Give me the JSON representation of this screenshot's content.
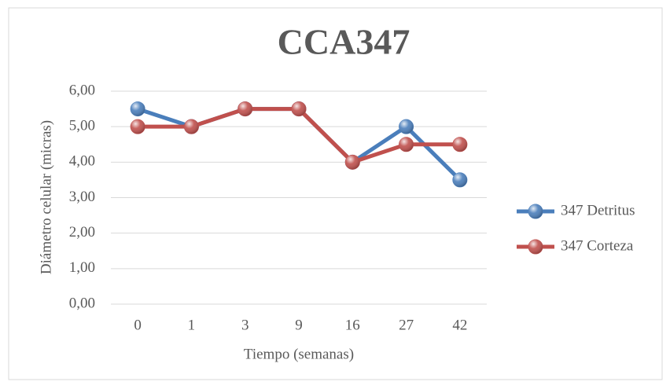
{
  "chart_data": {
    "type": "line",
    "title": "CCA347",
    "x_label": "Tiempo (semanas)",
    "y_label": "Diámetro  celular (micras)",
    "categories": [
      "0",
      "1",
      "3",
      "9",
      "16",
      "27",
      "42"
    ],
    "series": [
      {
        "name": "347 Detritus",
        "color": "#4a7ebb",
        "values": [
          5.5,
          5,
          5.5,
          5.5,
          4,
          5,
          3.5
        ]
      },
      {
        "name": "347 Corteza",
        "color": "#c0504d",
        "values": [
          5,
          5,
          5.5,
          5.5,
          4,
          4.5,
          4.5
        ]
      }
    ],
    "ylim": [
      0,
      6
    ],
    "yticks": [
      {
        "value": 0,
        "label": "0,00"
      },
      {
        "value": 1,
        "label": "1,00"
      },
      {
        "value": 2,
        "label": "2,00"
      },
      {
        "value": 3,
        "label": "3,00"
      },
      {
        "value": 4,
        "label": "4,00"
      },
      {
        "value": 5,
        "label": "5,00"
      },
      {
        "value": 6,
        "label": "6,00"
      }
    ],
    "grid": true,
    "legend": "right"
  }
}
